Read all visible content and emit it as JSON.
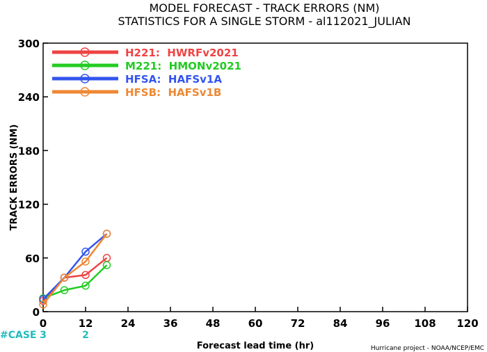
{
  "chart_data": {
    "type": "line",
    "title": "MODEL FORECAST - TRACK ERRORS (NM)",
    "subtitle": "STATISTICS FOR A SINGLE STORM - al112021_JULIAN",
    "xlabel": "Forecast lead time (hr)",
    "ylabel": "TRACK ERRORS (NM)",
    "xlim": [
      0,
      120
    ],
    "ylim": [
      0,
      300
    ],
    "xticks": [
      0,
      12,
      24,
      36,
      48,
      60,
      72,
      84,
      96,
      108,
      120
    ],
    "yticks": [
      0,
      60,
      120,
      180,
      240,
      300
    ],
    "ytick_labels": [
      "0",
      "60",
      "120",
      "180",
      "240",
      "300"
    ],
    "grid": false,
    "legend_position": "top-left",
    "series": [
      {
        "name": "H221:  HWRFv2021",
        "color": "#ee4444",
        "x": [
          0,
          6,
          12,
          18
        ],
        "y": [
          12,
          38,
          41,
          60
        ]
      },
      {
        "name": "M221:  HMONv2021",
        "color": "#22cc22",
        "x": [
          0,
          6,
          12,
          18
        ],
        "y": [
          15,
          24,
          29,
          52
        ]
      },
      {
        "name": "HFSA:  HAFSv1A",
        "color": "#3355ee",
        "x": [
          0,
          6,
          12,
          18
        ],
        "y": [
          14,
          38,
          67,
          87
        ]
      },
      {
        "name": "HFSB:  HAFSv1B",
        "color": "#ee8833",
        "x": [
          0,
          6,
          12,
          18
        ],
        "y": [
          8,
          38,
          56,
          87
        ]
      }
    ],
    "cases": {
      "label": "#CASE",
      "color": "#22bbbb",
      "x": [
        0,
        12
      ],
      "values": [
        "3",
        "2"
      ]
    },
    "credit": "Hurricane project - NOAA/NCEP/EMC"
  }
}
